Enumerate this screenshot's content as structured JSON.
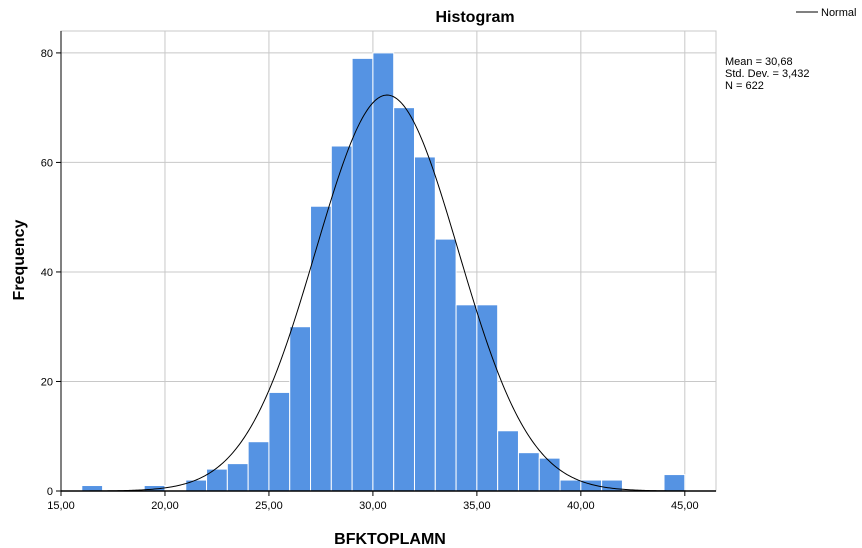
{
  "chart_data": {
    "type": "bar",
    "title": "Histogram",
    "xlabel": "BFKTOPLAMN",
    "ylabel": "Frequency",
    "xlim": [
      15,
      46.5
    ],
    "ylim": [
      0,
      84
    ],
    "x_ticks": [
      {
        "value": 15,
        "label": "15,00"
      },
      {
        "value": 20,
        "label": "20,00"
      },
      {
        "value": 25,
        "label": "25,00"
      },
      {
        "value": 30,
        "label": "30,00"
      },
      {
        "value": 35,
        "label": "35,00"
      },
      {
        "value": 40,
        "label": "40,00"
      },
      {
        "value": 45,
        "label": "45,00"
      }
    ],
    "y_ticks": [
      {
        "value": 0,
        "label": "0"
      },
      {
        "value": 20,
        "label": "20"
      },
      {
        "value": 40,
        "label": "40"
      },
      {
        "value": 60,
        "label": "60"
      },
      {
        "value": 80,
        "label": "80"
      }
    ],
    "grid": true,
    "bin_width": 1,
    "bars": [
      {
        "x": 16.5,
        "value": 1
      },
      {
        "x": 19.5,
        "value": 1
      },
      {
        "x": 21.5,
        "value": 2
      },
      {
        "x": 22.5,
        "value": 4
      },
      {
        "x": 23.5,
        "value": 5
      },
      {
        "x": 24.5,
        "value": 9
      },
      {
        "x": 25.5,
        "value": 18
      },
      {
        "x": 26.5,
        "value": 30
      },
      {
        "x": 27.5,
        "value": 52
      },
      {
        "x": 28.5,
        "value": 63
      },
      {
        "x": 29.5,
        "value": 79
      },
      {
        "x": 30.5,
        "value": 80
      },
      {
        "x": 31.5,
        "value": 70
      },
      {
        "x": 32.5,
        "value": 61
      },
      {
        "x": 33.5,
        "value": 46
      },
      {
        "x": 34.5,
        "value": 34
      },
      {
        "x": 35.5,
        "value": 34
      },
      {
        "x": 36.5,
        "value": 11
      },
      {
        "x": 37.5,
        "value": 7
      },
      {
        "x": 38.5,
        "value": 6
      },
      {
        "x": 39.5,
        "value": 2
      },
      {
        "x": 40.5,
        "value": 2
      },
      {
        "x": 41.5,
        "value": 2
      },
      {
        "x": 44.5,
        "value": 3
      }
    ],
    "normal_curve": {
      "mean": 30.68,
      "std_dev": 3.432,
      "n": 622
    },
    "stats_lines": [
      "Mean = 30,68",
      "Std. Dev. = 3,432",
      "N = 622"
    ],
    "legend": {
      "label": "Normal",
      "placement": "top-right"
    },
    "colors": {
      "bar": "#5593e3",
      "bar_edge": "#ffffff",
      "curve": "#000000",
      "grid": "#c8c8c8",
      "axis": "#000000"
    }
  }
}
